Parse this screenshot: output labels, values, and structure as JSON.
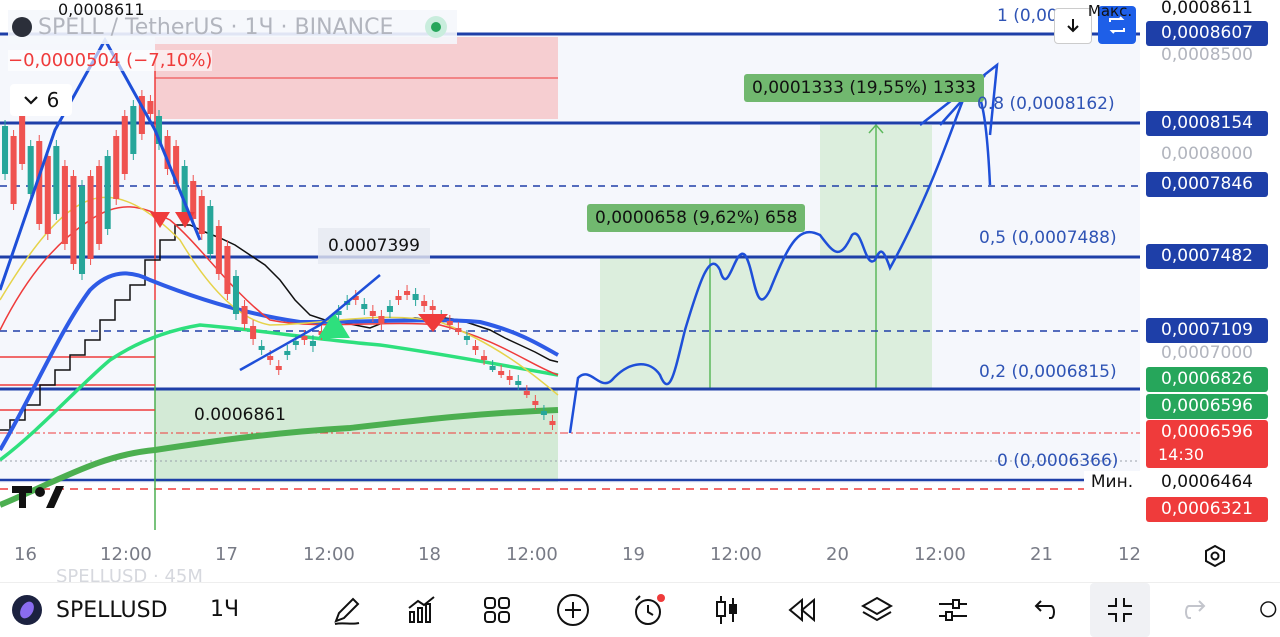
{
  "header": {
    "symbol_pair": "SPELL / TetherUS · 1Ч · BINANCE",
    "top_value": "0,0008611",
    "change": "−0,0000504 (−7,10%)",
    "indicator_count": "6"
  },
  "chart_notes": {
    "note_7399": "0.0007399",
    "note_6861": "0.0006861"
  },
  "measure_boxes": {
    "box1": "0,0000658 (9,62%) 658",
    "box2": "0,0001333 (19,55%) 1333"
  },
  "fib_levels": {
    "fib_1": "1 (0,000",
    "fib_08": "0.8 (0,0008162)",
    "fib_05": "0,5 (0,0007488)",
    "fib_02": "0,2 (0,0006815)",
    "fib_0": "0 (0,0006366)"
  },
  "price_scale": {
    "max_label": "Макс.",
    "min_label": "Мин.",
    "p8611": "0,0008611",
    "p8607": "0,0008607",
    "p8500": "0,0008500",
    "p8154": "0,0008154",
    "p8000": "0,0008000",
    "p7846": "0,0007846",
    "p7482": "0,0007482",
    "p7109": "0,0007109",
    "p7000": "0,0007000",
    "p6826": "0,0006826",
    "p6596a": "0,0006596",
    "p6596b": "0,0006596",
    "countdown": "14:30",
    "p6464": "0,0006464",
    "p6321": "0,0006321"
  },
  "time_axis": [
    "16",
    "12:00",
    "17",
    "12:00",
    "18",
    "12:00",
    "19",
    "12:00",
    "20",
    "12:00",
    "21",
    "12"
  ],
  "watermark": "SPELLUSD · 45M",
  "toolbar": {
    "symbol": "SPELLUSD",
    "interval": "1Ч"
  },
  "colors": {
    "blue_line": "#1e4fd8",
    "price_blue": "#1e4fd8",
    "price_green": "#26a65b",
    "price_red": "#ef3b3b",
    "candle_up": "#26a69a",
    "candle_down": "#ef5350",
    "measure_green": "#71b86f"
  }
}
